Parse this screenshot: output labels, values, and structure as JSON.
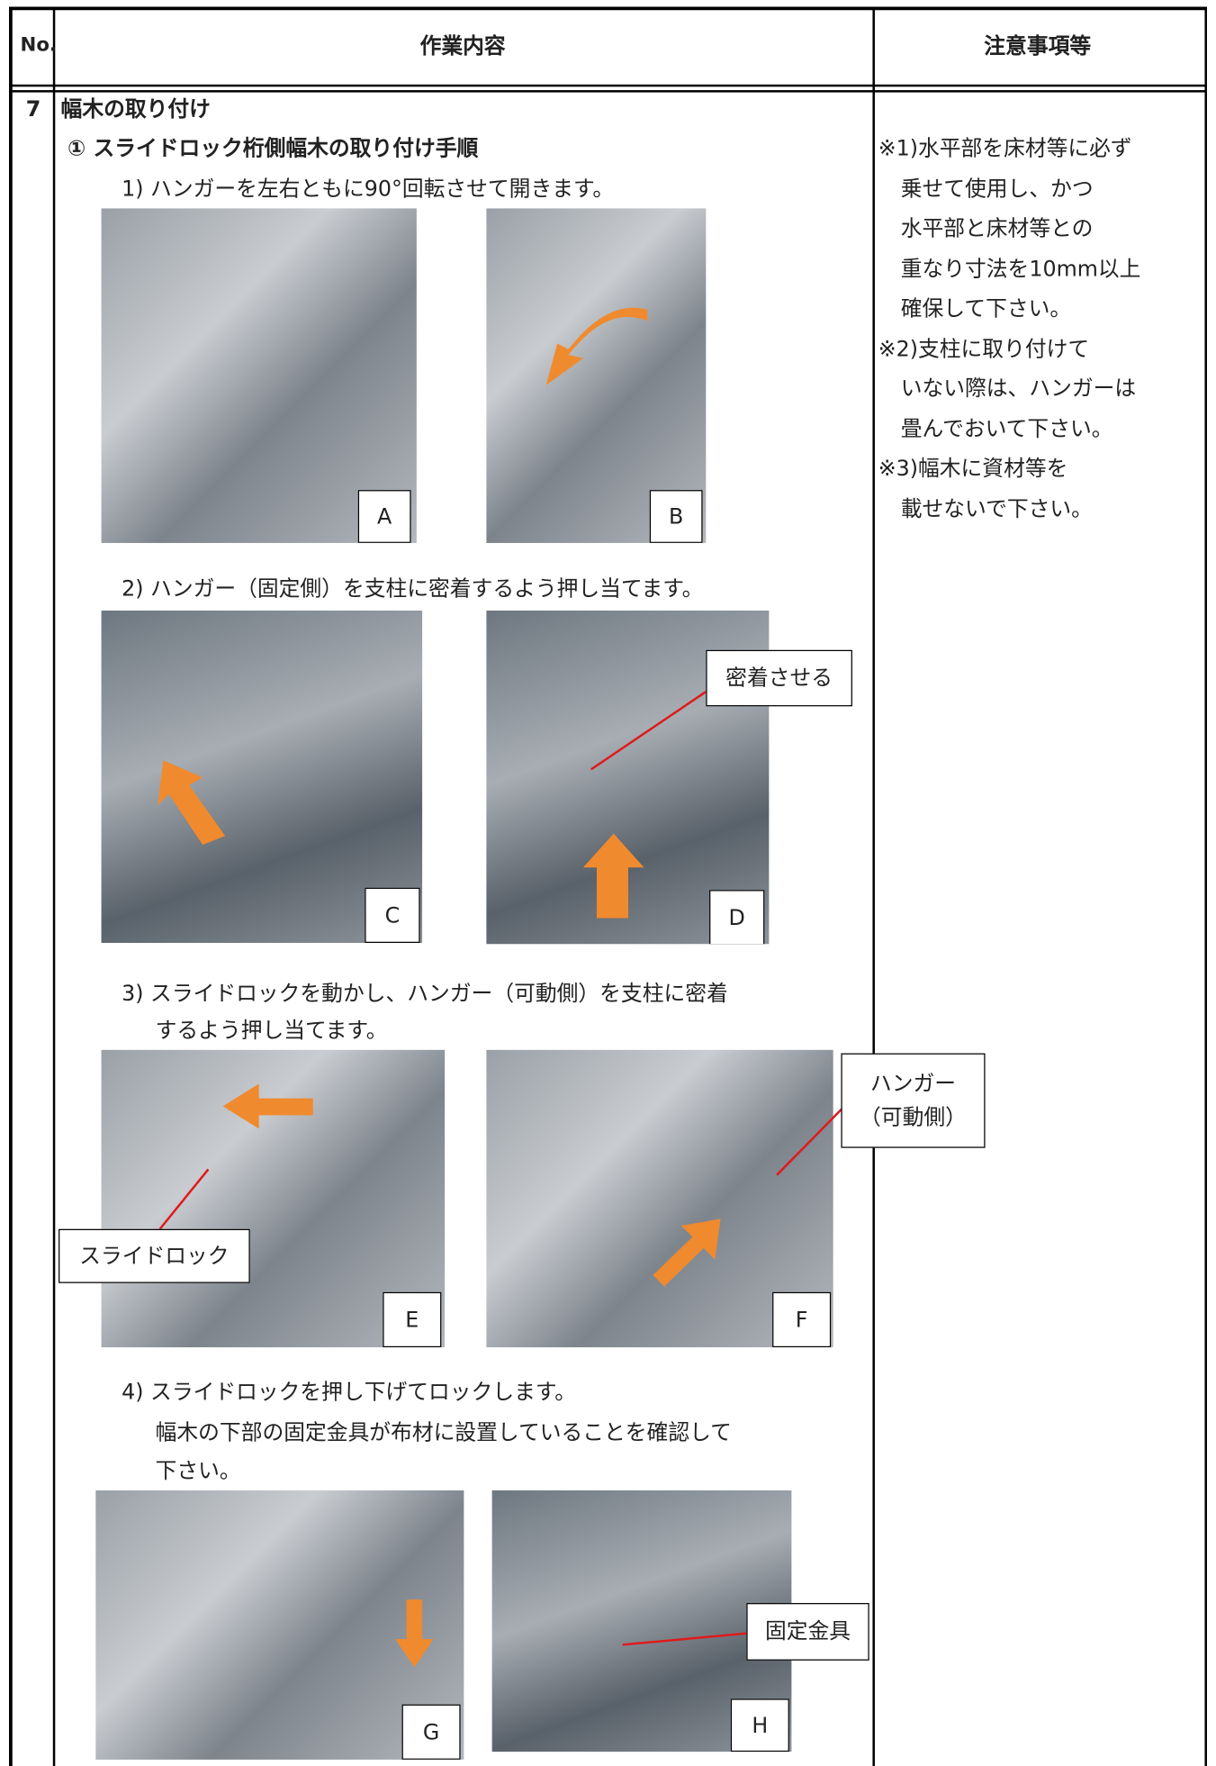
{
  "header": {
    "no": "No.",
    "content": "作業内容",
    "notes": "注意事項等"
  },
  "row": {
    "no": "7",
    "title": "幅木の取り付け",
    "section": "① スライドロック桁側幅木の取り付け手順",
    "steps": [
      {
        "lines": [
          "1) ハンガーを左右ともに90°回転させて開きます。"
        ],
        "photos": [
          "A",
          "B"
        ]
      },
      {
        "lines": [
          "2) ハンガー（固定側）を支柱に密着するよう押し当てます。"
        ],
        "photos": [
          "C",
          "D"
        ],
        "callouts": [
          "密着させる"
        ]
      },
      {
        "lines": [
          "3) スライドロックを動かし、ハンガー（可動側）を支柱に密着",
          "するよう押し当てます。"
        ],
        "photos": [
          "E",
          "F"
        ],
        "callouts": [
          "スライドロック",
          "ハンガー",
          "（可動側）"
        ]
      },
      {
        "lines": [
          "4) スライドロックを押し下げてロックします。",
          "幅木の下部の固定金具が布材に設置していることを確認して",
          "下さい。"
        ],
        "photos": [
          "G",
          "H"
        ],
        "callouts": [
          "固定金具"
        ]
      }
    ],
    "notes": [
      "※1)水平部を床材等に必ず",
      "乗せて使用し、かつ",
      "水平部と床材等との",
      "重なり寸法を10mm以上",
      "確保して下さい。",
      "※2)支柱に取り付けて",
      "いない際は、ハンガーは",
      "畳んでおいて下さい。",
      "※3)幅木に資材等を",
      "載せないで下さい。"
    ]
  }
}
